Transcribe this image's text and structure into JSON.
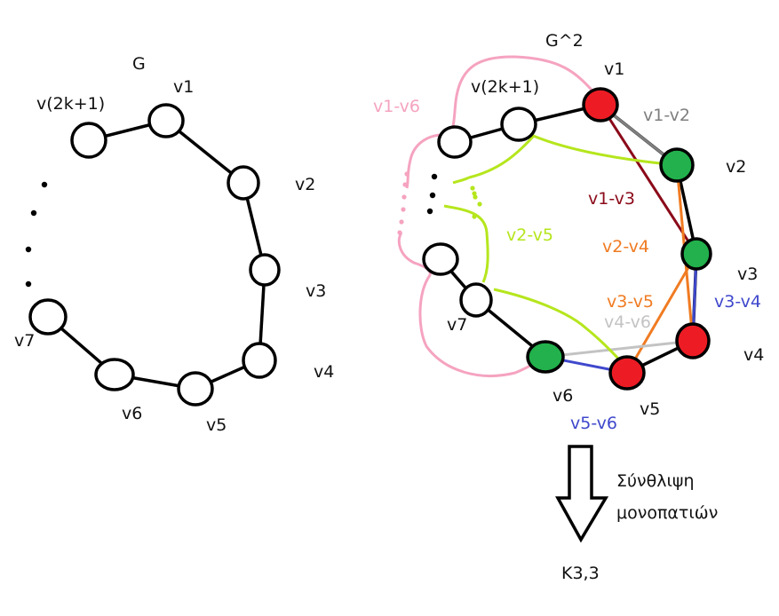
{
  "graph_g": {
    "title": "G",
    "vertices": {
      "v1": "v1",
      "v2": "v2",
      "v3": "v3",
      "v4": "v4",
      "v5": "v5",
      "v6": "v6",
      "v7": "v7",
      "vlast": "v(2k+1)"
    }
  },
  "graph_g2": {
    "title": "G^2",
    "vertices": {
      "v1": "v1",
      "v2": "v2",
      "v3": "v3",
      "v4": "v4",
      "v5": "v5",
      "v6": "v6",
      "v7": "v7",
      "vlast": "v(2k+1)"
    },
    "edge_labels": {
      "v1_v2": "v1-v2",
      "v1_v3": "v1-v3",
      "v2_v4": "v2-v4",
      "v3_v5": "v3-v5",
      "v4_v6": "v4-v6",
      "v3_v4": "v3-v4",
      "v5_v6": "v5-v6",
      "v1_v6": "v1-v6",
      "v2_v5": "v2-v5"
    },
    "edge_label_colors": {
      "v1_v2": "#7f7f7f",
      "v1_v3": "#8b0a1a",
      "v2_v4": "#f07b22",
      "v3_v5": "#f07b22",
      "v4_v6": "#c3c3c3",
      "v3_v4": "#3f48cc",
      "v5_v6": "#3f48cc",
      "v1_v6": "#f5a3c0",
      "v2_v5": "#b5e61d"
    },
    "node_colors": {
      "v1": "#ed1c24",
      "v2": "#22b14c",
      "v3": "#22b14c",
      "v4": "#ed1c24",
      "v5": "#ed1c24",
      "v6": "#22b14c"
    }
  },
  "transform": {
    "caption_line1": "Σύνθλιψη",
    "caption_line2": "μονοπατιών",
    "result": "K3,3"
  }
}
